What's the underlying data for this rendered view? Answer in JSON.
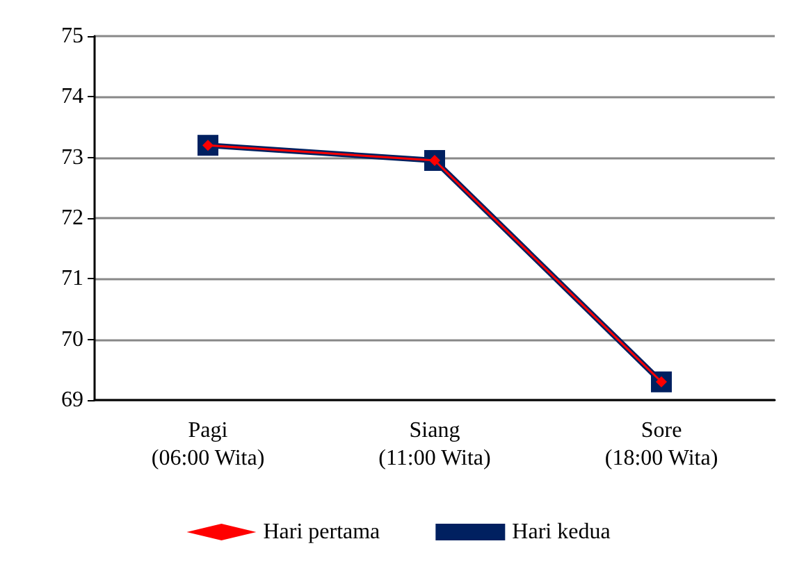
{
  "chart_data": {
    "type": "line",
    "categories": [
      "Pagi\n(06:00 Wita)",
      "Siang\n(11:00 Wita)",
      "Sore\n(18:00 Wita)"
    ],
    "series": [
      {
        "name": "Hari pertama",
        "color": "#ff0000",
        "marker": "diamond",
        "values": [
          73.2,
          72.95,
          69.3
        ]
      },
      {
        "name": "Hari kedua",
        "color": "#002060",
        "marker": "square",
        "values": [
          73.2,
          72.95,
          69.3
        ]
      }
    ],
    "ylim": [
      69,
      75
    ],
    "yticks": [
      69,
      70,
      71,
      72,
      73,
      74,
      75
    ],
    "grid": "y",
    "legend": "bottom"
  }
}
